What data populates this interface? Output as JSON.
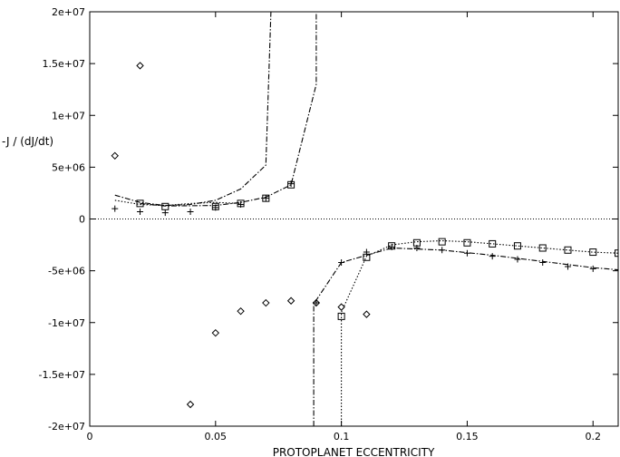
{
  "chart_data": {
    "type": "scatter",
    "title": "",
    "xlabel": "PROTOPLANET ECCENTRICITY",
    "ylabel": "-J / (dJ/dt)",
    "xlim": [
      0,
      0.21
    ],
    "ylim": [
      -20000000,
      20000000
    ],
    "grid": false,
    "legend": "none",
    "x_ticks": [
      {
        "value": 0,
        "label": "0"
      },
      {
        "value": 0.05,
        "label": "0.05"
      },
      {
        "value": 0.1,
        "label": "0.1"
      },
      {
        "value": 0.15,
        "label": "0.15"
      },
      {
        "value": 0.2,
        "label": "0.2"
      }
    ],
    "y_ticks": [
      {
        "value": 20000000,
        "label": "2e+07"
      },
      {
        "value": 15000000,
        "label": "1.5e+07"
      },
      {
        "value": 10000000,
        "label": "1e+07"
      },
      {
        "value": 5000000,
        "label": "5e+06"
      },
      {
        "value": 0,
        "label": "0"
      },
      {
        "value": -5000000,
        "label": "-5e+06"
      },
      {
        "value": -10000000,
        "label": "-1e+07"
      },
      {
        "value": -15000000,
        "label": "-1.5e+07"
      },
      {
        "value": -20000000,
        "label": "-2e+07"
      }
    ],
    "series": [
      {
        "marker": "diamond",
        "color": "#000000",
        "points": [
          [
            0.01,
            6100000
          ],
          [
            0.02,
            14800000
          ],
          [
            0.04,
            -17900000
          ],
          [
            0.05,
            -11000000
          ],
          [
            0.06,
            -8900000
          ],
          [
            0.07,
            -8100000
          ],
          [
            0.08,
            -7900000
          ],
          [
            0.09,
            -8100000
          ],
          [
            0.1,
            -8500000
          ],
          [
            0.11,
            -9200000
          ]
        ]
      },
      {
        "marker": "plus",
        "color": "#000000",
        "points": [
          [
            0.01,
            1000000
          ],
          [
            0.02,
            700000
          ],
          [
            0.03,
            600000
          ],
          [
            0.04,
            700000
          ],
          [
            0.05,
            1100000
          ],
          [
            0.06,
            1400000
          ],
          [
            0.07,
            2000000
          ],
          [
            0.08,
            3400000
          ],
          [
            0.09,
            -8100000
          ],
          [
            0.1,
            -4200000
          ],
          [
            0.11,
            -3200000
          ],
          [
            0.12,
            -2700000
          ],
          [
            0.13,
            -2800000
          ],
          [
            0.14,
            -3000000
          ],
          [
            0.15,
            -3300000
          ],
          [
            0.16,
            -3600000
          ],
          [
            0.17,
            -3900000
          ],
          [
            0.18,
            -4200000
          ],
          [
            0.19,
            -4600000
          ],
          [
            0.2,
            -4800000
          ],
          [
            0.21,
            -4900000
          ]
        ]
      },
      {
        "marker": "square",
        "color": "#000000",
        "points": [
          [
            0.02,
            1500000
          ],
          [
            0.03,
            1200000
          ],
          [
            0.05,
            1200000
          ],
          [
            0.06,
            1500000
          ],
          [
            0.07,
            2000000
          ],
          [
            0.08,
            3300000
          ],
          [
            0.1,
            -9400000
          ],
          [
            0.11,
            -3700000
          ],
          [
            0.12,
            -2600000
          ],
          [
            0.13,
            -2300000
          ],
          [
            0.14,
            -2200000
          ],
          [
            0.15,
            -2300000
          ],
          [
            0.16,
            -2400000
          ],
          [
            0.17,
            -2600000
          ],
          [
            0.18,
            -2800000
          ],
          [
            0.19,
            -3000000
          ],
          [
            0.2,
            -3200000
          ],
          [
            0.21,
            -3300000
          ]
        ]
      },
      {
        "marker": "none",
        "line": "dash-dot",
        "color": "#000000",
        "points": [
          [
            0.01,
            2300000
          ],
          [
            0.02,
            1600000
          ],
          [
            0.03,
            1300000
          ],
          [
            0.04,
            1400000
          ],
          [
            0.05,
            1800000
          ],
          [
            0.06,
            2900000
          ],
          [
            0.07,
            5200000
          ],
          [
            0.072,
            20000000
          ]
        ]
      },
      {
        "marker": "none",
        "line": "dash-dot",
        "color": "#000000",
        "points": [
          [
            0.02,
            1500000
          ],
          [
            0.03,
            1250000
          ],
          [
            0.05,
            1300000
          ],
          [
            0.06,
            1600000
          ],
          [
            0.07,
            2100000
          ],
          [
            0.08,
            3300000
          ],
          [
            0.09,
            13000000
          ],
          [
            0.09,
            20000000
          ]
        ]
      },
      {
        "marker": "none",
        "line": "dash-dot",
        "color": "#000000",
        "points": [
          [
            0.089,
            -20000000
          ],
          [
            0.089,
            -8200000
          ],
          [
            0.1,
            -4200000
          ],
          [
            0.12,
            -2800000
          ],
          [
            0.14,
            -3000000
          ],
          [
            0.16,
            -3500000
          ],
          [
            0.18,
            -4100000
          ],
          [
            0.2,
            -4700000
          ],
          [
            0.21,
            -4900000
          ]
        ]
      },
      {
        "marker": "none",
        "line": "dotted",
        "color": "#000000",
        "points": [
          [
            0.01,
            1800000
          ],
          [
            0.02,
            1400000
          ],
          [
            0.03,
            1300000
          ],
          [
            0.04,
            1500000
          ],
          [
            0.05,
            1600000
          ],
          [
            0.06,
            1500000
          ]
        ]
      },
      {
        "marker": "none",
        "line": "dotted",
        "color": "#000000",
        "points": [
          [
            0.1,
            -20000000
          ],
          [
            0.1,
            -9000000
          ],
          [
            0.11,
            -3600000
          ],
          [
            0.12,
            -2500000
          ],
          [
            0.13,
            -2200000
          ],
          [
            0.14,
            -2100000
          ],
          [
            0.15,
            -2200000
          ],
          [
            0.16,
            -2400000
          ],
          [
            0.17,
            -2600000
          ],
          [
            0.18,
            -2800000
          ],
          [
            0.19,
            -3000000
          ],
          [
            0.2,
            -3200000
          ],
          [
            0.21,
            -3300000
          ]
        ]
      }
    ]
  }
}
